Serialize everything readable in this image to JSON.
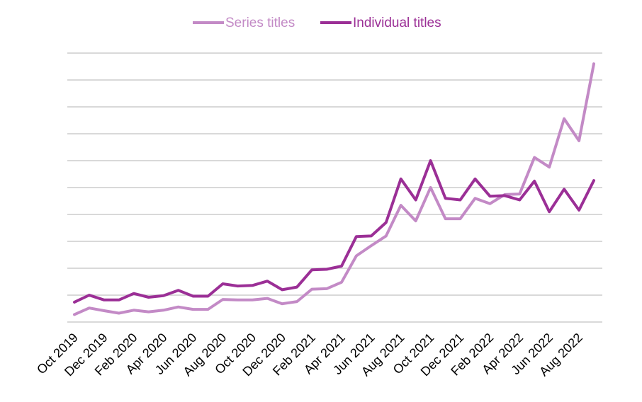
{
  "chart_data": {
    "type": "line",
    "x": [
      "Oct 2019",
      "Nov 2019",
      "Dec 2019",
      "Jan 2020",
      "Feb 2020",
      "Mar 2020",
      "Apr 2020",
      "May 2020",
      "Jun 2020",
      "Jul 2020",
      "Aug 2020",
      "Sep 2020",
      "Oct 2020",
      "Nov 2020",
      "Dec 2020",
      "Jan 2021",
      "Feb 2021",
      "Mar 2021",
      "Apr 2021",
      "May 2021",
      "Jun 2021",
      "Jul 2021",
      "Aug 2021",
      "Sep 2021",
      "Oct 2021",
      "Nov 2021",
      "Dec 2021",
      "Jan 2022",
      "Feb 2022",
      "Mar 2022",
      "Apr 2022",
      "May 2022",
      "Jun 2022",
      "Jul 2022",
      "Aug 2022",
      "Sep 2022"
    ],
    "x_tick_labels": [
      "Oct 2019",
      "Dec 2019",
      "Feb 2020",
      "Apr 2020",
      "Jun 2020",
      "Aug 2020",
      "Oct 2020",
      "Dec 2020",
      "Feb 2021",
      "Apr 2021",
      "Jun 2021",
      "Aug 2021",
      "Oct 2021",
      "Dec 2021",
      "Feb 2022",
      "Apr 2022",
      "Jun 2022",
      "Aug 2022"
    ],
    "series": [
      {
        "name": "Series titles",
        "color": "#c38ac6",
        "values": [
          0.28,
          0.52,
          0.42,
          0.33,
          0.44,
          0.38,
          0.44,
          0.56,
          0.47,
          0.47,
          0.84,
          0.82,
          0.82,
          0.88,
          0.68,
          0.76,
          1.22,
          1.24,
          1.48,
          2.46,
          2.84,
          3.2,
          4.34,
          3.76,
          5.0,
          3.84,
          3.84,
          4.6,
          4.4,
          4.74,
          4.76,
          6.12,
          5.76,
          7.56,
          6.74,
          9.6
        ]
      },
      {
        "name": "Individual titles",
        "color": "#9b2f96",
        "values": [
          0.74,
          1.0,
          0.82,
          0.82,
          1.06,
          0.92,
          0.98,
          1.18,
          0.96,
          0.96,
          1.42,
          1.34,
          1.36,
          1.52,
          1.2,
          1.3,
          1.94,
          1.96,
          2.08,
          3.18,
          3.2,
          3.7,
          5.32,
          4.54,
          6.0,
          4.6,
          4.54,
          5.32,
          4.68,
          4.7,
          4.54,
          5.24,
          4.1,
          4.94,
          4.16,
          5.26
        ]
      }
    ],
    "ylim": [
      0,
      10
    ],
    "y_gridlines": [
      0,
      1,
      2,
      3,
      4,
      5,
      6,
      7,
      8,
      9,
      10
    ],
    "grid": true,
    "legend": "top-center",
    "title": "",
    "xlabel": "",
    "ylabel": ""
  }
}
